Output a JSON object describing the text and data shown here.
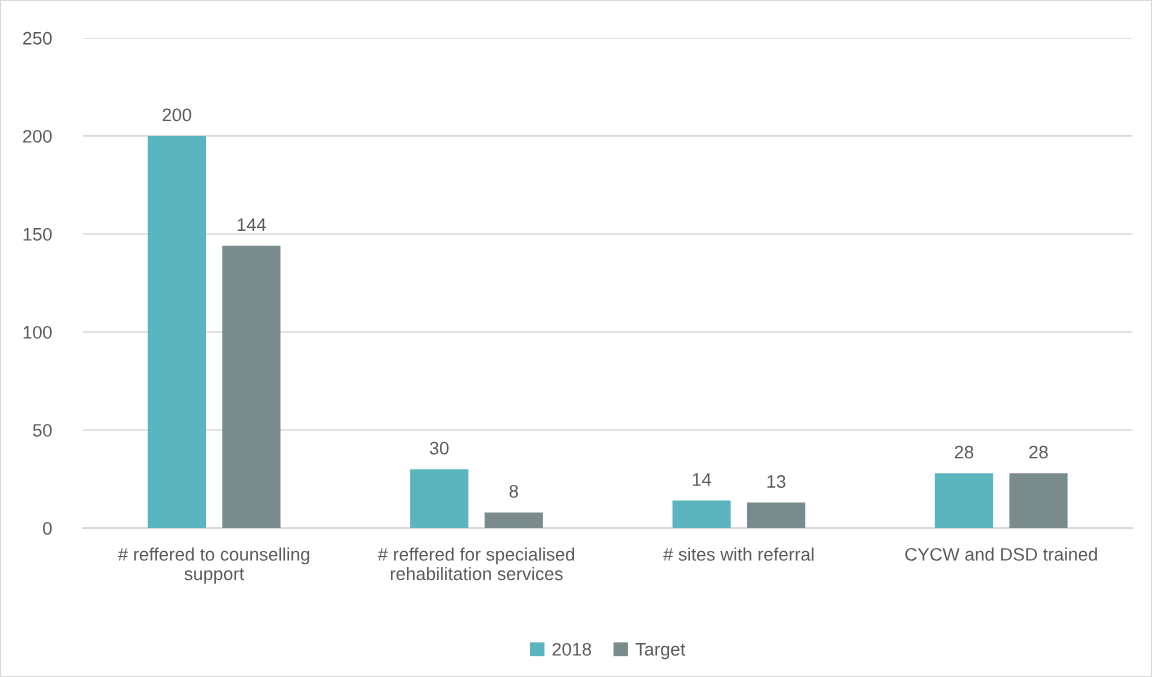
{
  "chart_data": {
    "type": "bar",
    "categories": [
      "# reffered to counselling\nsupport",
      "# reffered for specialised\nrehabilitation services",
      "# sites with referral",
      "CYCW and DSD trained"
    ],
    "series": [
      {
        "name": "2018",
        "color": "#5ab5bf",
        "values": [
          200,
          30,
          14,
          28
        ]
      },
      {
        "name": "Target",
        "color": "#7a8b8c",
        "values": [
          144,
          8,
          13,
          28
        ]
      }
    ],
    "ylim": [
      0,
      250
    ],
    "yticks": [
      0,
      50,
      100,
      150,
      200,
      250
    ],
    "grid": "y",
    "legend": "bottom",
    "data_labels": true
  }
}
